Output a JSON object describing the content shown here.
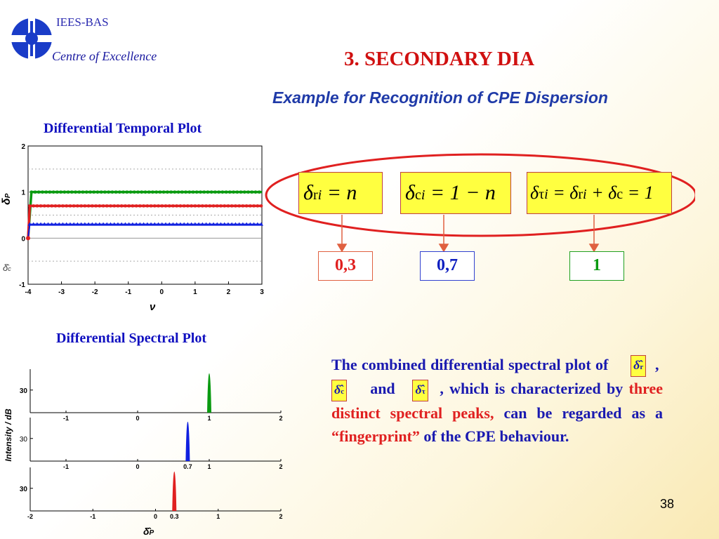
{
  "header": {
    "org": "IEES-BAS",
    "centre": "Centre of Excellence",
    "title": "3. SECONDARY DIA",
    "subtitle": "Example for Recognition of CPE Dispersion"
  },
  "colors": {
    "red": "#e02020",
    "green": "#0a9a10",
    "blue": "#1020e0",
    "title_red": "#d01010",
    "text_blue": "#1a1ab0"
  },
  "temporal_plot": {
    "title": "Differential Temporal Plot",
    "ylabel_sym": "δ",
    "ylabel_sub": "P",
    "xlabel": "ν",
    "delta_c_label": "δ̂",
    "delta_c_sub": "c",
    "zero_label": "0",
    "xticks": [
      "-4",
      "-3",
      "-2",
      "-1",
      "0",
      "1",
      "2",
      "3"
    ],
    "yticks": [
      "2",
      "1",
      "0",
      "-1"
    ]
  },
  "spectral_plot": {
    "title": "Differential Spectral Plot",
    "ylabel": "Intensity / dB",
    "xlabel_sym": "δ̂",
    "xlabel_sub": "P",
    "panels": [
      {
        "ytick": "30",
        "xticks": [
          "-1",
          "0",
          "1",
          "2"
        ]
      },
      {
        "ytick": "30",
        "xticks": [
          "-1",
          "0",
          "0.7",
          "1",
          "2"
        ]
      },
      {
        "ytick": "30",
        "xticks": [
          "-2",
          "-1",
          "0",
          "0.3",
          "1",
          "2"
        ]
      }
    ]
  },
  "chart_data": [
    {
      "type": "line",
      "title": "Differential Temporal Plot",
      "xlabel": "ν",
      "ylabel": "δP",
      "xlim": [
        -4,
        3
      ],
      "ylim": [
        -1,
        2
      ],
      "series": [
        {
          "color": "#0a9a10",
          "x": [
            -4,
            -3.9,
            3
          ],
          "y": [
            0,
            1,
            1
          ]
        },
        {
          "color": "#e02020",
          "x": [
            -4,
            -3.95,
            3
          ],
          "y": [
            0,
            0.7,
            0.7
          ]
        },
        {
          "color": "#1020e0",
          "x": [
            -4,
            -3.95,
            3
          ],
          "y": [
            0,
            0.3,
            0.3
          ]
        }
      ]
    },
    {
      "type": "line",
      "title": "Differential Spectral Plot",
      "ylabel": "Intensity / dB",
      "xlabel": "δ̂P",
      "panels": [
        {
          "xlim": [
            -1.5,
            2
          ],
          "peak_x": 1,
          "color": "#0a9a10",
          "peak_y": 38
        },
        {
          "xlim": [
            -1.5,
            2
          ],
          "peak_x": 0.7,
          "color": "#1020e0",
          "peak_y": 38
        },
        {
          "xlim": [
            -2,
            2
          ],
          "peak_x": 0.3,
          "color": "#e02020",
          "peak_y": 38
        }
      ]
    }
  ],
  "equations": {
    "eq1": {
      "delta": "δ",
      "sub1": "r",
      "sub2": "i",
      "rest": " = n"
    },
    "eq2": {
      "delta": "δ",
      "sub1": "c",
      "sub2": "i",
      "rest": " = 1 − n"
    },
    "eq3": {
      "delta": "δ",
      "sub1": "τ",
      "sub2": "i",
      "mid": " = δ",
      "msub1": "r",
      "msub2": "i",
      "plus": " + δ",
      "psub": "c",
      "rest": " = 1"
    }
  },
  "values": {
    "v1": "0,3",
    "v2": "0,7",
    "v3": "1"
  },
  "paragraph": {
    "p1": "The combined differential spectral plot of",
    "h1": "δ̂",
    "h1s": "r",
    "comma1": ",",
    "h2": "δ̂",
    "h2s": "c",
    "and": "and",
    "h3": "δ̂",
    "h3s": "τ",
    "p2": ", which is characterized by",
    "red1": "three distinct spectral peaks,",
    "p3": "can be regarded as a",
    "red2": "“fingerprint”",
    "p4": "of the CPE behaviour."
  },
  "page_number": "38"
}
